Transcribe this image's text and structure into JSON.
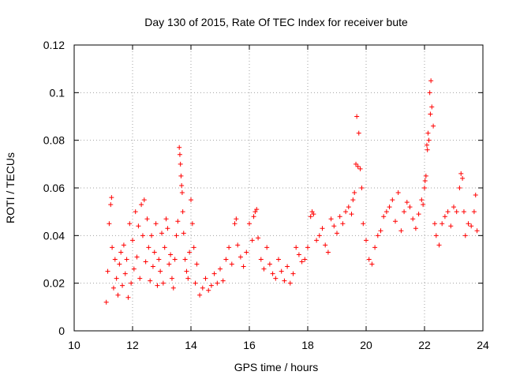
{
  "chart_data": {
    "type": "scatter",
    "title": "Day 130 of 2015, Rate Of TEC Index for receiver bute",
    "xlabel": "GPS time / hours",
    "ylabel": "ROTI / TECUs",
    "xlim": [
      10,
      24
    ],
    "ylim": [
      0,
      0.12
    ],
    "xticks": [
      10,
      12,
      14,
      16,
      18,
      20,
      22,
      24
    ],
    "xtick_labels": [
      "10",
      "12",
      "14",
      "16",
      "18",
      "20",
      "22",
      "24"
    ],
    "yticks": [
      0,
      0.02,
      0.04,
      0.06,
      0.08,
      0.1,
      0.12
    ],
    "ytick_labels": [
      "0",
      "0.02",
      "0.04",
      "0.06",
      "0.08",
      "0.1",
      "0.12"
    ],
    "grid": true,
    "marker": "+",
    "color": "#ff0000",
    "series": [
      {
        "name": "ROTI",
        "points": [
          [
            11.1,
            0.012
          ],
          [
            11.15,
            0.025
          ],
          [
            11.2,
            0.045
          ],
          [
            11.25,
            0.053
          ],
          [
            11.28,
            0.056
          ],
          [
            11.3,
            0.035
          ],
          [
            11.35,
            0.018
          ],
          [
            11.4,
            0.03
          ],
          [
            11.45,
            0.022
          ],
          [
            11.5,
            0.015
          ],
          [
            11.55,
            0.028
          ],
          [
            11.6,
            0.033
          ],
          [
            11.65,
            0.019
          ],
          [
            11.7,
            0.036
          ],
          [
            11.75,
            0.024
          ],
          [
            11.8,
            0.03
          ],
          [
            11.85,
            0.014
          ],
          [
            11.9,
            0.045
          ],
          [
            11.95,
            0.02
          ],
          [
            12.0,
            0.038
          ],
          [
            12.05,
            0.026
          ],
          [
            12.1,
            0.05
          ],
          [
            12.15,
            0.031
          ],
          [
            12.2,
            0.044
          ],
          [
            12.25,
            0.022
          ],
          [
            12.3,
            0.053
          ],
          [
            12.35,
            0.04
          ],
          [
            12.4,
            0.055
          ],
          [
            12.45,
            0.029
          ],
          [
            12.5,
            0.047
          ],
          [
            12.55,
            0.035
          ],
          [
            12.6,
            0.021
          ],
          [
            12.65,
            0.04
          ],
          [
            12.7,
            0.027
          ],
          [
            12.75,
            0.033
          ],
          [
            12.8,
            0.045
          ],
          [
            12.85,
            0.019
          ],
          [
            12.9,
            0.03
          ],
          [
            12.95,
            0.025
          ],
          [
            13.0,
            0.041
          ],
          [
            13.05,
            0.02
          ],
          [
            13.1,
            0.035
          ],
          [
            13.15,
            0.047
          ],
          [
            13.2,
            0.043
          ],
          [
            13.25,
            0.028
          ],
          [
            13.3,
            0.032
          ],
          [
            13.35,
            0.022
          ],
          [
            13.4,
            0.018
          ],
          [
            13.45,
            0.03
          ],
          [
            13.5,
            0.04
          ],
          [
            13.55,
            0.046
          ],
          [
            13.6,
            0.077
          ],
          [
            13.62,
            0.074
          ],
          [
            13.64,
            0.07
          ],
          [
            13.66,
            0.065
          ],
          [
            13.68,
            0.061
          ],
          [
            13.7,
            0.058
          ],
          [
            13.72,
            0.05
          ],
          [
            13.75,
            0.041
          ],
          [
            13.8,
            0.03
          ],
          [
            13.85,
            0.025
          ],
          [
            13.9,
            0.022
          ],
          [
            13.95,
            0.033
          ],
          [
            14.0,
            0.055
          ],
          [
            14.05,
            0.045
          ],
          [
            14.1,
            0.035
          ],
          [
            14.15,
            0.02
          ],
          [
            14.2,
            0.028
          ],
          [
            14.3,
            0.015
          ],
          [
            14.4,
            0.018
          ],
          [
            14.5,
            0.022
          ],
          [
            14.6,
            0.017
          ],
          [
            14.7,
            0.019
          ],
          [
            14.8,
            0.024
          ],
          [
            14.9,
            0.02
          ],
          [
            15.0,
            0.026
          ],
          [
            15.1,
            0.021
          ],
          [
            15.2,
            0.03
          ],
          [
            15.3,
            0.035
          ],
          [
            15.4,
            0.028
          ],
          [
            15.5,
            0.045
          ],
          [
            15.55,
            0.047
          ],
          [
            15.6,
            0.036
          ],
          [
            15.7,
            0.031
          ],
          [
            15.8,
            0.027
          ],
          [
            15.9,
            0.033
          ],
          [
            16.0,
            0.045
          ],
          [
            16.1,
            0.038
          ],
          [
            16.15,
            0.048
          ],
          [
            16.2,
            0.05
          ],
          [
            16.25,
            0.051
          ],
          [
            16.3,
            0.039
          ],
          [
            16.4,
            0.03
          ],
          [
            16.5,
            0.026
          ],
          [
            16.6,
            0.035
          ],
          [
            16.7,
            0.028
          ],
          [
            16.8,
            0.024
          ],
          [
            16.9,
            0.022
          ],
          [
            17.0,
            0.03
          ],
          [
            17.1,
            0.025
          ],
          [
            17.2,
            0.021
          ],
          [
            17.3,
            0.027
          ],
          [
            17.4,
            0.02
          ],
          [
            17.5,
            0.024
          ],
          [
            17.6,
            0.035
          ],
          [
            17.7,
            0.032
          ],
          [
            17.8,
            0.029
          ],
          [
            17.9,
            0.03
          ],
          [
            18.0,
            0.035
          ],
          [
            18.1,
            0.048
          ],
          [
            18.15,
            0.05
          ],
          [
            18.2,
            0.049
          ],
          [
            18.3,
            0.038
          ],
          [
            18.4,
            0.04
          ],
          [
            18.5,
            0.043
          ],
          [
            18.6,
            0.036
          ],
          [
            18.7,
            0.033
          ],
          [
            18.8,
            0.047
          ],
          [
            18.9,
            0.044
          ],
          [
            19.0,
            0.041
          ],
          [
            19.1,
            0.048
          ],
          [
            19.2,
            0.045
          ],
          [
            19.3,
            0.05
          ],
          [
            19.4,
            0.052
          ],
          [
            19.5,
            0.049
          ],
          [
            19.55,
            0.055
          ],
          [
            19.6,
            0.058
          ],
          [
            19.65,
            0.07
          ],
          [
            19.68,
            0.09
          ],
          [
            19.72,
            0.069
          ],
          [
            19.75,
            0.083
          ],
          [
            19.8,
            0.068
          ],
          [
            19.85,
            0.06
          ],
          [
            19.9,
            0.045
          ],
          [
            20.0,
            0.038
          ],
          [
            20.1,
            0.03
          ],
          [
            20.2,
            0.028
          ],
          [
            20.3,
            0.035
          ],
          [
            20.4,
            0.04
          ],
          [
            20.5,
            0.042
          ],
          [
            20.6,
            0.048
          ],
          [
            20.7,
            0.05
          ],
          [
            20.8,
            0.052
          ],
          [
            20.9,
            0.055
          ],
          [
            21.0,
            0.046
          ],
          [
            21.1,
            0.058
          ],
          [
            21.2,
            0.042
          ],
          [
            21.3,
            0.05
          ],
          [
            21.4,
            0.054
          ],
          [
            21.5,
            0.052
          ],
          [
            21.6,
            0.047
          ],
          [
            21.7,
            0.043
          ],
          [
            21.8,
            0.049
          ],
          [
            21.9,
            0.055
          ],
          [
            21.95,
            0.053
          ],
          [
            22.0,
            0.06
          ],
          [
            22.02,
            0.063
          ],
          [
            22.05,
            0.065
          ],
          [
            22.08,
            0.078
          ],
          [
            22.1,
            0.076
          ],
          [
            22.12,
            0.083
          ],
          [
            22.15,
            0.08
          ],
          [
            22.18,
            0.1
          ],
          [
            22.2,
            0.091
          ],
          [
            22.22,
            0.105
          ],
          [
            22.25,
            0.094
          ],
          [
            22.3,
            0.086
          ],
          [
            22.35,
            0.045
          ],
          [
            22.4,
            0.04
          ],
          [
            22.5,
            0.036
          ],
          [
            22.6,
            0.045
          ],
          [
            22.7,
            0.048
          ],
          [
            22.8,
            0.05
          ],
          [
            22.9,
            0.044
          ],
          [
            23.0,
            0.052
          ],
          [
            23.1,
            0.05
          ],
          [
            23.2,
            0.06
          ],
          [
            23.25,
            0.066
          ],
          [
            23.3,
            0.064
          ],
          [
            23.35,
            0.05
          ],
          [
            23.4,
            0.04
          ],
          [
            23.5,
            0.045
          ],
          [
            23.6,
            0.044
          ],
          [
            23.7,
            0.05
          ],
          [
            23.75,
            0.057
          ],
          [
            23.8,
            0.042
          ]
        ]
      }
    ]
  }
}
